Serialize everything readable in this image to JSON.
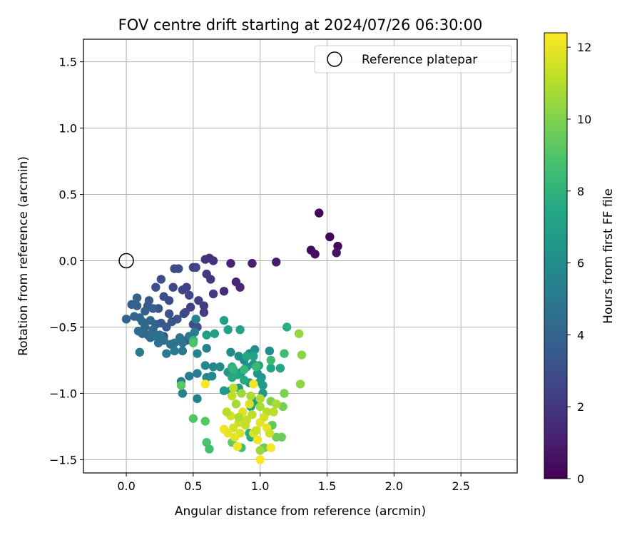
{
  "chart_data": {
    "type": "scatter",
    "title": "FOV centre drift starting at 2024/07/26 06:30:00",
    "xlabel": "Angular distance from reference (arcmin)",
    "ylabel": "Rotation from reference (arcmin)",
    "xlim": [
      -0.32,
      2.92
    ],
    "ylim": [
      -1.6,
      1.67
    ],
    "xticks": [
      0.0,
      0.5,
      1.0,
      1.5,
      2.0,
      2.5
    ],
    "xtick_labels": [
      "0.0",
      "0.5",
      "1.0",
      "1.5",
      "2.0",
      "2.5"
    ],
    "yticks": [
      -1.5,
      -1.0,
      -0.5,
      0.0,
      0.5,
      1.0,
      1.5
    ],
    "ytick_labels": [
      "−1.5",
      "−1.0",
      "−0.5",
      "0.0",
      "0.5",
      "1.0",
      "1.5"
    ],
    "grid": true,
    "legend": {
      "placement": "top-right",
      "entries": [
        "Reference platepar"
      ]
    },
    "reference_point": {
      "x": 0.0,
      "y": 0.0,
      "marker": "hollow-circle",
      "color": "#000000"
    },
    "colorbar": {
      "label": "Hours from first FF file",
      "range": [
        0,
        12.4
      ],
      "ticks": [
        0,
        2,
        4,
        6,
        8,
        10,
        12
      ],
      "tick_labels": [
        "0",
        "2",
        "4",
        "6",
        "8",
        "10",
        "12"
      ],
      "colormap": "viridis"
    },
    "points": [
      {
        "x": 1.44,
        "y": 0.36,
        "h": 0.1
      },
      {
        "x": 1.52,
        "y": 0.18,
        "h": 0.2
      },
      {
        "x": 1.58,
        "y": 0.11,
        "h": 0.3
      },
      {
        "x": 1.38,
        "y": 0.08,
        "h": 0.4
      },
      {
        "x": 1.41,
        "y": 0.05,
        "h": 0.5
      },
      {
        "x": 1.57,
        "y": 0.06,
        "h": 0.6
      },
      {
        "x": 1.12,
        "y": -0.01,
        "h": 0.9
      },
      {
        "x": 0.94,
        "y": -0.02,
        "h": 1.1
      },
      {
        "x": 0.78,
        "y": -0.02,
        "h": 1.3
      },
      {
        "x": 0.82,
        "y": -0.16,
        "h": 1.3
      },
      {
        "x": 0.85,
        "y": -0.2,
        "h": 1.4
      },
      {
        "x": 0.73,
        "y": -0.23,
        "h": 1.6
      },
      {
        "x": 0.62,
        "y": 0.02,
        "h": 1.7
      },
      {
        "x": 0.65,
        "y": 0.0,
        "h": 1.8
      },
      {
        "x": 0.59,
        "y": 0.01,
        "h": 1.9
      },
      {
        "x": 0.6,
        "y": -0.1,
        "h": 2.0
      },
      {
        "x": 0.63,
        "y": -0.14,
        "h": 2.0
      },
      {
        "x": 0.65,
        "y": -0.25,
        "h": 2.1
      },
      {
        "x": 0.58,
        "y": -0.34,
        "h": 2.2
      },
      {
        "x": 0.58,
        "y": -0.39,
        "h": 2.2
      },
      {
        "x": 0.54,
        "y": -0.3,
        "h": 2.3
      },
      {
        "x": 0.48,
        "y": -0.35,
        "h": 2.3
      },
      {
        "x": 0.45,
        "y": -0.2,
        "h": 2.4
      },
      {
        "x": 0.5,
        "y": -0.05,
        "h": 2.4
      },
      {
        "x": 0.52,
        "y": -0.05,
        "h": 2.5
      },
      {
        "x": 0.42,
        "y": -0.22,
        "h": 2.5
      },
      {
        "x": 0.47,
        "y": -0.26,
        "h": 2.6
      },
      {
        "x": 0.44,
        "y": -0.39,
        "h": 2.6
      },
      {
        "x": 0.43,
        "y": -0.4,
        "h": 2.7
      },
      {
        "x": 0.35,
        "y": -0.2,
        "h": 2.7
      },
      {
        "x": 0.36,
        "y": -0.06,
        "h": 2.8
      },
      {
        "x": 0.39,
        "y": -0.06,
        "h": 2.8
      },
      {
        "x": 0.32,
        "y": -0.3,
        "h": 2.9
      },
      {
        "x": 0.26,
        "y": -0.14,
        "h": 2.9
      },
      {
        "x": 0.22,
        "y": -0.2,
        "h": 3.0
      },
      {
        "x": 0.28,
        "y": -0.27,
        "h": 3.0
      },
      {
        "x": 0.5,
        "y": -0.48,
        "h": 3.0
      },
      {
        "x": 0.45,
        "y": -0.6,
        "h": 3.1
      },
      {
        "x": 0.53,
        "y": -0.5,
        "h": 3.1
      },
      {
        "x": 0.24,
        "y": -0.36,
        "h": 3.2
      },
      {
        "x": 0.32,
        "y": -0.4,
        "h": 3.2
      },
      {
        "x": 0.38,
        "y": -0.44,
        "h": 3.3
      },
      {
        "x": 0.34,
        "y": -0.46,
        "h": 3.3
      },
      {
        "x": 0.26,
        "y": -0.47,
        "h": 3.4
      },
      {
        "x": 0.3,
        "y": -0.5,
        "h": 3.4
      },
      {
        "x": 0.28,
        "y": -0.57,
        "h": 3.5
      },
      {
        "x": 0.22,
        "y": -0.48,
        "h": 3.5
      },
      {
        "x": 0.16,
        "y": -0.34,
        "h": 3.6
      },
      {
        "x": 0.17,
        "y": -0.3,
        "h": 3.6
      },
      {
        "x": 0.2,
        "y": -0.36,
        "h": 3.7
      },
      {
        "x": 0.14,
        "y": -0.38,
        "h": 3.7
      },
      {
        "x": 0.08,
        "y": -0.34,
        "h": 3.8
      },
      {
        "x": 0.04,
        "y": -0.33,
        "h": 3.8
      },
      {
        "x": 0.08,
        "y": -0.28,
        "h": 3.9
      },
      {
        "x": 0.0,
        "y": -0.44,
        "h": 3.9
      },
      {
        "x": 0.06,
        "y": -0.42,
        "h": 4.0
      },
      {
        "x": 0.1,
        "y": -0.43,
        "h": 4.0
      },
      {
        "x": 0.12,
        "y": -0.46,
        "h": 4.1
      },
      {
        "x": 0.14,
        "y": -0.5,
        "h": 4.1
      },
      {
        "x": 0.18,
        "y": -0.45,
        "h": 4.2
      },
      {
        "x": 0.2,
        "y": -0.52,
        "h": 4.2
      },
      {
        "x": 0.16,
        "y": -0.56,
        "h": 4.3
      },
      {
        "x": 0.12,
        "y": -0.55,
        "h": 4.3
      },
      {
        "x": 0.09,
        "y": -0.53,
        "h": 4.4
      },
      {
        "x": 0.18,
        "y": -0.58,
        "h": 4.4
      },
      {
        "x": 0.22,
        "y": -0.57,
        "h": 4.5
      },
      {
        "x": 0.25,
        "y": -0.56,
        "h": 4.5
      },
      {
        "x": 0.24,
        "y": -0.62,
        "h": 4.6
      },
      {
        "x": 0.28,
        "y": -0.6,
        "h": 4.6
      },
      {
        "x": 0.33,
        "y": -0.63,
        "h": 4.7
      },
      {
        "x": 0.36,
        "y": -0.62,
        "h": 4.7
      },
      {
        "x": 0.4,
        "y": -0.58,
        "h": 4.8
      },
      {
        "x": 0.42,
        "y": -0.62,
        "h": 4.8
      },
      {
        "x": 0.47,
        "y": -0.57,
        "h": 4.9
      },
      {
        "x": 0.5,
        "y": -0.6,
        "h": 4.9
      },
      {
        "x": 0.42,
        "y": -0.68,
        "h": 5.0
      },
      {
        "x": 0.36,
        "y": -0.68,
        "h": 5.0
      },
      {
        "x": 0.3,
        "y": -0.7,
        "h": 5.1
      },
      {
        "x": 0.1,
        "y": -0.69,
        "h": 5.1
      },
      {
        "x": 0.47,
        "y": -0.87,
        "h": 5.2
      },
      {
        "x": 0.53,
        "y": -0.85,
        "h": 5.2
      },
      {
        "x": 0.41,
        "y": -0.91,
        "h": 5.3
      },
      {
        "x": 0.42,
        "y": -1.0,
        "h": 5.3
      },
      {
        "x": 0.53,
        "y": -1.04,
        "h": 5.4
      },
      {
        "x": 0.52,
        "y": -0.44,
        "h": 5.4
      },
      {
        "x": 0.51,
        "y": -0.54,
        "h": 5.5
      },
      {
        "x": 0.6,
        "y": -0.66,
        "h": 5.5
      },
      {
        "x": 0.53,
        "y": -0.7,
        "h": 5.6
      },
      {
        "x": 0.59,
        "y": -0.79,
        "h": 5.6
      },
      {
        "x": 0.65,
        "y": -0.8,
        "h": 5.7
      },
      {
        "x": 0.6,
        "y": -0.88,
        "h": 5.7
      },
      {
        "x": 0.64,
        "y": -0.87,
        "h": 5.8
      },
      {
        "x": 0.7,
        "y": -0.8,
        "h": 5.8
      },
      {
        "x": 0.78,
        "y": -0.69,
        "h": 5.9
      },
      {
        "x": 0.84,
        "y": -0.72,
        "h": 5.9
      },
      {
        "x": 0.88,
        "y": -0.75,
        "h": 6.0
      },
      {
        "x": 0.92,
        "y": -0.7,
        "h": 6.0
      },
      {
        "x": 0.96,
        "y": -0.67,
        "h": 6.1
      },
      {
        "x": 1.07,
        "y": -0.68,
        "h": 6.1
      },
      {
        "x": 0.9,
        "y": -0.8,
        "h": 6.2
      },
      {
        "x": 0.86,
        "y": -0.84,
        "h": 6.2
      },
      {
        "x": 0.95,
        "y": -0.78,
        "h": 6.3
      },
      {
        "x": 0.98,
        "y": -0.85,
        "h": 6.3
      },
      {
        "x": 1.01,
        "y": -0.88,
        "h": 6.4
      },
      {
        "x": 0.92,
        "y": -0.92,
        "h": 6.4
      },
      {
        "x": 0.84,
        "y": -0.96,
        "h": 6.5
      },
      {
        "x": 0.78,
        "y": -0.98,
        "h": 6.5
      },
      {
        "x": 0.73,
        "y": -0.98,
        "h": 6.6
      },
      {
        "x": 0.76,
        "y": -0.84,
        "h": 6.6
      },
      {
        "x": 1.02,
        "y": -1.0,
        "h": 6.7
      },
      {
        "x": 1.02,
        "y": -0.94,
        "h": 6.7
      },
      {
        "x": 1.0,
        "y": -0.91,
        "h": 6.8
      },
      {
        "x": 0.97,
        "y": -1.06,
        "h": 6.8
      },
      {
        "x": 0.93,
        "y": -1.1,
        "h": 6.9
      },
      {
        "x": 0.6,
        "y": -0.56,
        "h": 6.9
      },
      {
        "x": 0.66,
        "y": -0.55,
        "h": 7.0
      },
      {
        "x": 0.73,
        "y": -0.45,
        "h": 7.0
      },
      {
        "x": 0.76,
        "y": -0.52,
        "h": 7.1
      },
      {
        "x": 0.85,
        "y": -0.52,
        "h": 7.1
      },
      {
        "x": 0.9,
        "y": -0.72,
        "h": 7.2
      },
      {
        "x": 0.95,
        "y": -0.72,
        "h": 7.2
      },
      {
        "x": 0.99,
        "y": -0.79,
        "h": 7.3
      },
      {
        "x": 1.08,
        "y": -0.81,
        "h": 7.3
      },
      {
        "x": 1.15,
        "y": -0.81,
        "h": 7.4
      },
      {
        "x": 0.83,
        "y": -0.86,
        "h": 7.4
      },
      {
        "x": 0.79,
        "y": -0.88,
        "h": 7.5
      },
      {
        "x": 0.88,
        "y": -0.9,
        "h": 7.5
      },
      {
        "x": 0.92,
        "y": -1.3,
        "h": 7.6
      },
      {
        "x": 0.93,
        "y": -1.33,
        "h": 7.6
      },
      {
        "x": 1.2,
        "y": -0.5,
        "h": 7.8
      },
      {
        "x": 0.79,
        "y": -0.8,
        "h": 7.9
      },
      {
        "x": 0.5,
        "y": -0.6,
        "h": 8.0
      },
      {
        "x": 0.8,
        "y": -0.82,
        "h": 8.1
      },
      {
        "x": 0.88,
        "y": -0.82,
        "h": 8.2
      },
      {
        "x": 0.97,
        "y": -0.8,
        "h": 8.3
      },
      {
        "x": 1.08,
        "y": -0.75,
        "h": 8.4
      },
      {
        "x": 1.18,
        "y": -0.7,
        "h": 8.5
      },
      {
        "x": 0.62,
        "y": -1.42,
        "h": 8.6
      },
      {
        "x": 0.86,
        "y": -1.41,
        "h": 8.7
      },
      {
        "x": 0.6,
        "y": -1.37,
        "h": 8.8
      },
      {
        "x": 0.5,
        "y": -0.62,
        "h": 8.9
      },
      {
        "x": 0.5,
        "y": -1.19,
        "h": 9.0
      },
      {
        "x": 0.59,
        "y": -1.21,
        "h": 9.1
      },
      {
        "x": 0.41,
        "y": -0.94,
        "h": 9.2
      },
      {
        "x": 0.79,
        "y": -1.37,
        "h": 9.3
      },
      {
        "x": 1.09,
        "y": -1.24,
        "h": 9.4
      },
      {
        "x": 1.16,
        "y": -1.33,
        "h": 9.5
      },
      {
        "x": 1.03,
        "y": -1.41,
        "h": 9.6
      },
      {
        "x": 1.12,
        "y": -1.33,
        "h": 9.7
      },
      {
        "x": 1.17,
        "y": -1.1,
        "h": 9.8
      },
      {
        "x": 1.18,
        "y": -1.0,
        "h": 9.9
      },
      {
        "x": 1.08,
        "y": -1.06,
        "h": 10.0
      },
      {
        "x": 1.31,
        "y": -0.71,
        "h": 10.2
      },
      {
        "x": 1.3,
        "y": -0.93,
        "h": 10.3
      },
      {
        "x": 1.29,
        "y": -0.55,
        "h": 10.4
      },
      {
        "x": 1.0,
        "y": -1.43,
        "h": 10.5
      },
      {
        "x": 0.86,
        "y": -1.0,
        "h": 10.6
      },
      {
        "x": 0.82,
        "y": -1.08,
        "h": 10.7
      },
      {
        "x": 0.93,
        "y": -1.02,
        "h": 10.8
      },
      {
        "x": 1.0,
        "y": -1.04,
        "h": 10.9
      },
      {
        "x": 1.05,
        "y": -1.14,
        "h": 11.0
      },
      {
        "x": 1.1,
        "y": -1.14,
        "h": 11.1
      },
      {
        "x": 0.94,
        "y": -1.16,
        "h": 11.2
      },
      {
        "x": 0.9,
        "y": -1.2,
        "h": 11.3
      },
      {
        "x": 0.84,
        "y": -1.22,
        "h": 11.4
      },
      {
        "x": 0.78,
        "y": -1.17,
        "h": 11.5
      },
      {
        "x": 0.8,
        "y": -1.26,
        "h": 11.6
      },
      {
        "x": 0.85,
        "y": -1.3,
        "h": 11.7
      },
      {
        "x": 0.95,
        "y": -1.3,
        "h": 11.8
      },
      {
        "x": 1.0,
        "y": -1.22,
        "h": 11.9
      },
      {
        "x": 1.05,
        "y": -1.26,
        "h": 12.0
      },
      {
        "x": 0.98,
        "y": -1.35,
        "h": 12.1
      },
      {
        "x": 0.95,
        "y": -0.93,
        "h": 12.2
      },
      {
        "x": 0.59,
        "y": -0.93,
        "h": 12.3
      },
      {
        "x": 1.0,
        "y": -1.5,
        "h": 12.3
      },
      {
        "x": 1.08,
        "y": -1.41,
        "h": 12.3
      },
      {
        "x": 0.83,
        "y": -1.4,
        "h": 12.2
      },
      {
        "x": 0.73,
        "y": -1.27,
        "h": 12.1
      },
      {
        "x": 0.76,
        "y": -1.3,
        "h": 12.0
      },
      {
        "x": 0.81,
        "y": -1.33,
        "h": 11.9
      },
      {
        "x": 0.87,
        "y": -1.14,
        "h": 11.8
      },
      {
        "x": 0.92,
        "y": -1.08,
        "h": 11.7
      },
      {
        "x": 1.03,
        "y": -1.18,
        "h": 11.6
      },
      {
        "x": 1.07,
        "y": -1.3,
        "h": 11.5
      },
      {
        "x": 0.97,
        "y": -1.28,
        "h": 11.4
      },
      {
        "x": 0.89,
        "y": -1.24,
        "h": 11.3
      },
      {
        "x": 0.79,
        "y": -1.02,
        "h": 11.2
      },
      {
        "x": 0.8,
        "y": -0.96,
        "h": 11.1
      },
      {
        "x": 0.75,
        "y": -1.14,
        "h": 11.0
      },
      {
        "x": 0.84,
        "y": -1.18,
        "h": 10.9
      },
      {
        "x": 1.12,
        "y": -1.08,
        "h": 10.8
      },
      {
        "x": 1.0,
        "y": -1.1,
        "h": 10.7
      }
    ]
  }
}
